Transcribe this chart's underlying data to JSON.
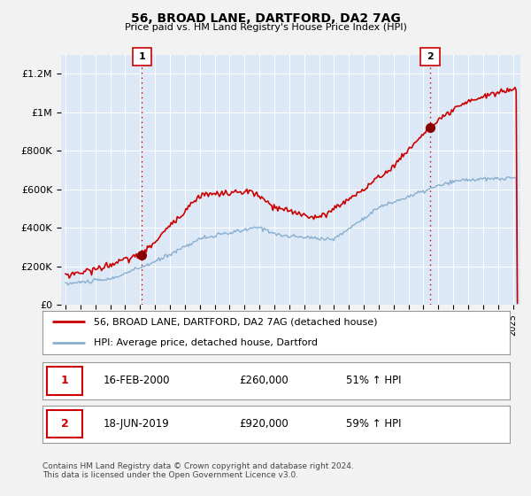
{
  "title": "56, BROAD LANE, DARTFORD, DA2 7AG",
  "subtitle": "Price paid vs. HM Land Registry's House Price Index (HPI)",
  "ylabel_ticks": [
    "£0",
    "£200K",
    "£400K",
    "£600K",
    "£800K",
    "£1M",
    "£1.2M"
  ],
  "ytick_values": [
    0,
    200000,
    400000,
    600000,
    800000,
    1000000,
    1200000
  ],
  "ylim": [
    0,
    1300000
  ],
  "xlim_start": 1994.7,
  "xlim_end": 2025.5,
  "red_line_color": "#cc0000",
  "blue_line_color": "#88afd0",
  "plot_bg_color": "#dce8f5",
  "marker1_x": 2000.12,
  "marker1_y": 260000,
  "marker1_label": "1",
  "marker2_x": 2019.46,
  "marker2_y": 920000,
  "marker2_label": "2",
  "vline1_x": 2000.12,
  "vline2_x": 2019.46,
  "vline_color": "#cc0000",
  "legend_line1": "56, BROAD LANE, DARTFORD, DA2 7AG (detached house)",
  "legend_line2": "HPI: Average price, detached house, Dartford",
  "table_row1": [
    "1",
    "16-FEB-2000",
    "£260,000",
    "51% ↑ HPI"
  ],
  "table_row2": [
    "2",
    "18-JUN-2019",
    "£920,000",
    "59% ↑ HPI"
  ],
  "footer": "Contains HM Land Registry data © Crown copyright and database right 2024.\nThis data is licensed under the Open Government Licence v3.0.",
  "background_color": "#f2f2f2",
  "grid_color": "#ffffff"
}
